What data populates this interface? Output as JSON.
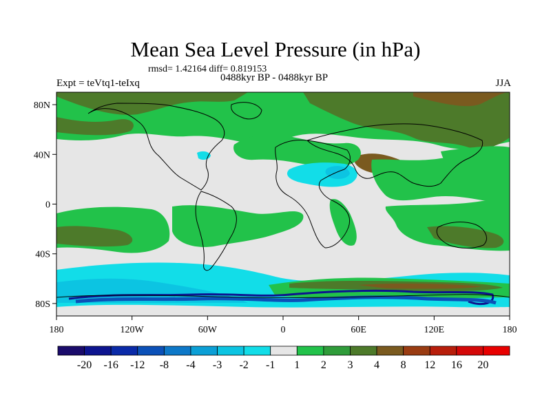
{
  "title": "Mean Sea Level Pressure (in hPa)",
  "rmsd_line": "rmsd= 1.42164 diff= 0.819153",
  "period": "0488kyr BP - 0488kyr BP",
  "experiment": "Expt = teVtq1-teIxq",
  "season": "JJA",
  "lat_ticks": [
    "80N",
    "40N",
    "0",
    "40S",
    "80S"
  ],
  "lon_ticks": [
    "180",
    "120W",
    "60W",
    "0",
    "60E",
    "120E",
    "180"
  ],
  "colorbar": {
    "labels": [
      "-20",
      "-16",
      "-12",
      "-8",
      "-4",
      "-3",
      "-2",
      "-1",
      "1",
      "2",
      "3",
      "4",
      "8",
      "12",
      "16",
      "20"
    ],
    "colors": [
      "#1a0b6b",
      "#0d148f",
      "#0a2aa8",
      "#0b51b8",
      "#0d78c8",
      "#0b9fd6",
      "#0cc4e2",
      "#12dde8",
      "#e6e6e6",
      "#22c24a",
      "#2f9c3a",
      "#4d7a2a",
      "#7a5a1f",
      "#9a3c12",
      "#b81e0b",
      "#d40808",
      "#e80000"
    ]
  },
  "colors": {
    "neutral": "#e6e6e6",
    "green": "#22c24a",
    "darkgreen": "#2f9c3a",
    "olive": "#4d7a2a",
    "brown": "#7a5a1f",
    "cyan": "#12dde8",
    "lightblue": "#0cc4e2",
    "blue": "#0b51b8",
    "navy": "#0d148f"
  }
}
